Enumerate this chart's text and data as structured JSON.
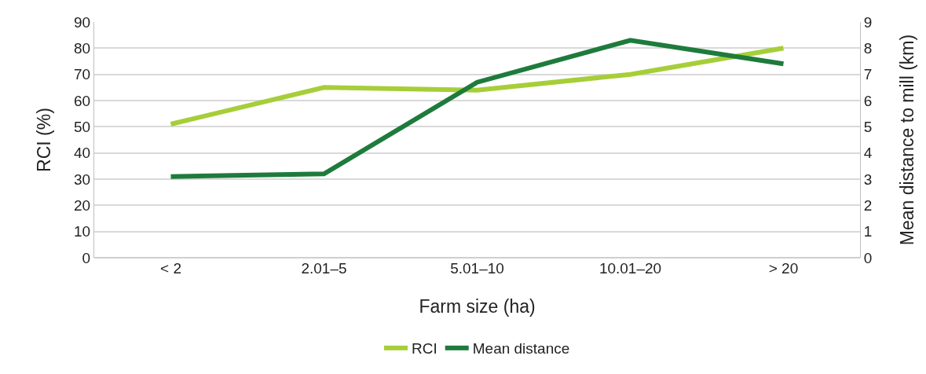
{
  "chart_data": {
    "type": "line",
    "xlabel": "Farm size (ha)",
    "ylabel": "RCI (%)",
    "y2label": "Mean distance to mill (km)",
    "categories": [
      "< 2",
      "2.01–5",
      "5.01–10",
      "10.01–20",
      "> 20"
    ],
    "series": [
      {
        "name": "RCI",
        "color": "#a6ce39",
        "values": [
          51,
          65,
          64,
          70,
          80
        ]
      },
      {
        "name": "Mean distance",
        "color": "#1e7b3c",
        "axis": "y2",
        "values": [
          3.1,
          3.2,
          6.7,
          8.3,
          7.4
        ]
      }
    ],
    "ylim": [
      0,
      90
    ],
    "yticks": [
      0,
      10,
      20,
      30,
      40,
      50,
      60,
      70,
      80,
      90
    ],
    "y2lim": [
      0,
      9
    ],
    "y2ticks": [
      0,
      1,
      2,
      3,
      4,
      5,
      6,
      7,
      8,
      9
    ],
    "grid": "y",
    "legend": "bottom",
    "marker": "none",
    "line_style": "solid"
  }
}
